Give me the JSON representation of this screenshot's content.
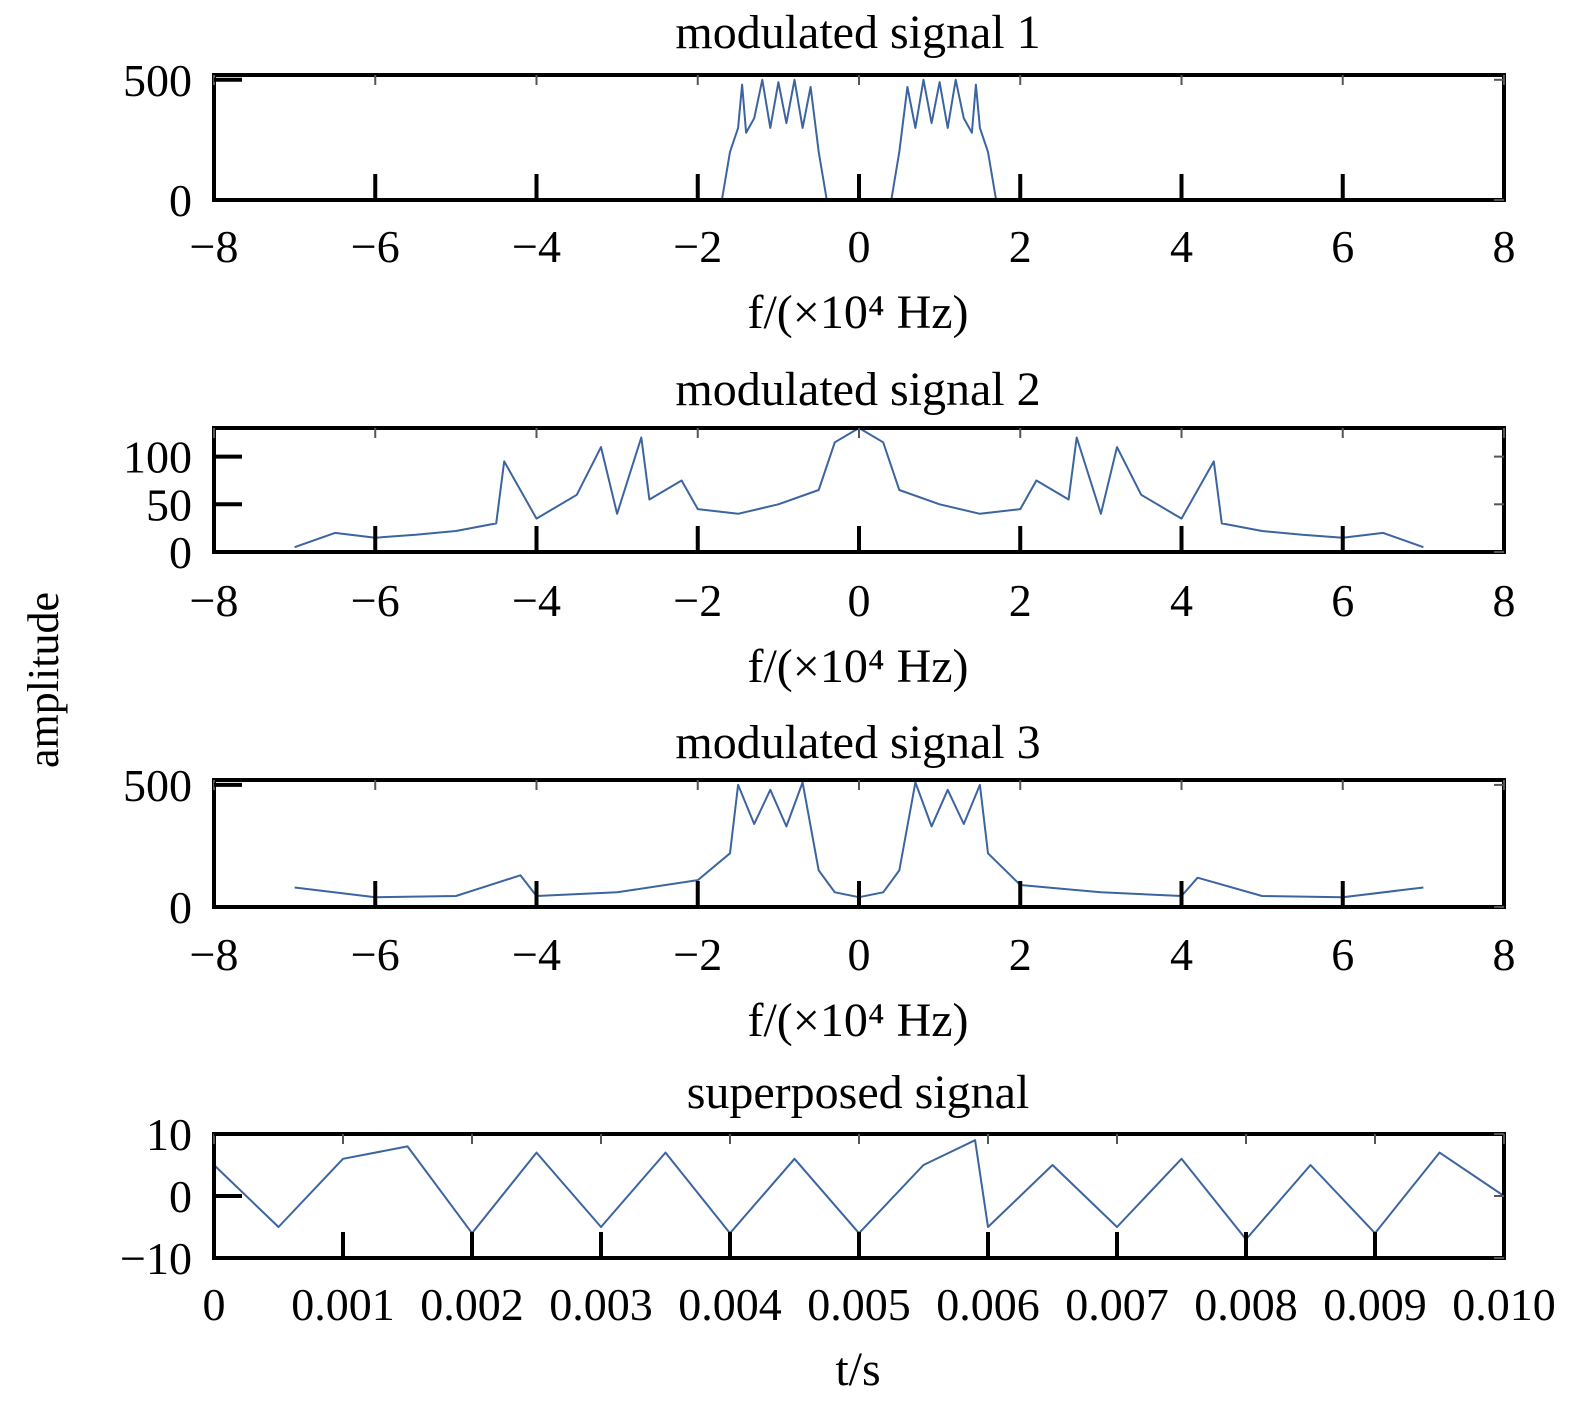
{
  "figure": {
    "ylabel": "amplitude",
    "line_color": "#3b64a0"
  },
  "chart_data": [
    {
      "type": "line",
      "title": "modulated signal 1",
      "xlabel": "f/(×10⁴ Hz)",
      "ylabel": "amplitude",
      "xlim": [
        -8,
        8
      ],
      "ylim": [
        0,
        520
      ],
      "x_ticks": [
        -8,
        -6,
        -4,
        -2,
        0,
        2,
        4,
        6,
        8
      ],
      "x_tick_labels": [
        "−8",
        "−6",
        "−4",
        "−2",
        "0",
        "2",
        "4",
        "6",
        "8"
      ],
      "y_ticks": [
        0,
        500
      ],
      "y_tick_labels": [
        "0",
        "500"
      ],
      "grid": false,
      "series": [
        {
          "x": [
            -1.7,
            -1.6,
            -1.5,
            -1.45,
            -1.4,
            -1.3,
            -1.2,
            -1.1,
            -1.0,
            -0.9,
            -0.8,
            -0.7,
            -0.6,
            -0.5,
            -0.4,
            0.4,
            0.5,
            0.6,
            0.7,
            0.8,
            0.9,
            1.0,
            1.1,
            1.2,
            1.3,
            1.4,
            1.45,
            1.5,
            1.6,
            1.7
          ],
          "y": [
            0,
            200,
            300,
            480,
            280,
            340,
            500,
            300,
            490,
            320,
            500,
            300,
            470,
            200,
            0,
            0,
            200,
            470,
            300,
            500,
            320,
            490,
            300,
            500,
            340,
            280,
            480,
            300,
            200,
            0
          ]
        }
      ]
    },
    {
      "type": "line",
      "title": "modulated signal 2",
      "xlabel": "f/(×10⁴ Hz)",
      "ylabel": "amplitude",
      "xlim": [
        -8,
        8
      ],
      "ylim": [
        0,
        130
      ],
      "x_ticks": [
        -8,
        -6,
        -4,
        -2,
        0,
        2,
        4,
        6,
        8
      ],
      "x_tick_labels": [
        "−8",
        "−6",
        "−4",
        "−2",
        "0",
        "2",
        "4",
        "6",
        "8"
      ],
      "y_ticks": [
        0,
        50,
        100
      ],
      "y_tick_labels": [
        "0",
        "50",
        "100"
      ],
      "grid": false,
      "series": [
        {
          "x": [
            -7.0,
            -6.5,
            -6.0,
            -5.5,
            -5.0,
            -4.5,
            -4.4,
            -4.0,
            -3.5,
            -3.2,
            -3.0,
            -2.7,
            -2.6,
            -2.2,
            -2.0,
            -1.5,
            -1.0,
            -0.5,
            -0.3,
            0.0,
            0.3,
            0.5,
            1.0,
            1.5,
            2.0,
            2.2,
            2.6,
            2.7,
            3.0,
            3.2,
            3.5,
            4.0,
            4.4,
            4.5,
            5.0,
            5.5,
            6.0,
            6.5,
            7.0
          ],
          "y": [
            5,
            20,
            15,
            18,
            22,
            30,
            95,
            35,
            60,
            110,
            40,
            120,
            55,
            75,
            45,
            40,
            50,
            65,
            115,
            130,
            115,
            65,
            50,
            40,
            45,
            75,
            55,
            120,
            40,
            110,
            60,
            35,
            95,
            30,
            22,
            18,
            15,
            20,
            5
          ]
        }
      ]
    },
    {
      "type": "line",
      "title": "modulated signal 3",
      "xlabel": "f/(×10⁴ Hz)",
      "ylabel": "amplitude",
      "xlim": [
        -8,
        8
      ],
      "ylim": [
        0,
        520
      ],
      "x_ticks": [
        -8,
        -6,
        -4,
        -2,
        0,
        2,
        4,
        6,
        8
      ],
      "x_tick_labels": [
        "−8",
        "−6",
        "−4",
        "−2",
        "0",
        "2",
        "4",
        "6",
        "8"
      ],
      "y_ticks": [
        0,
        500
      ],
      "y_tick_labels": [
        "0",
        "500"
      ],
      "grid": false,
      "series": [
        {
          "x": [
            -7.0,
            -6.0,
            -5.0,
            -4.2,
            -4.0,
            -3.0,
            -2.0,
            -1.6,
            -1.5,
            -1.3,
            -1.1,
            -0.9,
            -0.7,
            -0.5,
            -0.3,
            0.0,
            0.3,
            0.5,
            0.7,
            0.9,
            1.1,
            1.3,
            1.5,
            1.6,
            2.0,
            3.0,
            4.0,
            4.2,
            5.0,
            6.0,
            7.0
          ],
          "y": [
            80,
            40,
            45,
            130,
            45,
            60,
            110,
            220,
            500,
            340,
            480,
            330,
            510,
            150,
            60,
            40,
            60,
            150,
            510,
            330,
            480,
            340,
            500,
            220,
            90,
            60,
            45,
            120,
            45,
            40,
            80
          ]
        }
      ]
    },
    {
      "type": "line",
      "title": "superposed signal",
      "xlabel": "t/s",
      "ylabel": "amplitude",
      "xlim": [
        0,
        0.01
      ],
      "ylim": [
        -10,
        10
      ],
      "x_ticks": [
        0,
        0.001,
        0.002,
        0.003,
        0.004,
        0.005,
        0.006,
        0.007,
        0.008,
        0.009,
        0.01
      ],
      "x_tick_labels": [
        "0",
        "0.001",
        "0.002",
        "0.003",
        "0.004",
        "0.005",
        "0.006",
        "0.007",
        "0.008",
        "0.009",
        "0.010"
      ],
      "y_ticks": [
        -10,
        0,
        10
      ],
      "y_tick_labels": [
        "−10",
        "0",
        "10"
      ],
      "grid": false,
      "series": [
        {
          "x": [
            0,
            0.0005,
            0.001,
            0.0015,
            0.002,
            0.0025,
            0.003,
            0.0035,
            0.004,
            0.0045,
            0.005,
            0.0055,
            0.0059,
            0.006,
            0.0065,
            0.007,
            0.0075,
            0.008,
            0.0085,
            0.009,
            0.0095,
            0.01
          ],
          "y": [
            5,
            -5,
            6,
            8,
            -6,
            7,
            -5,
            7,
            -6,
            6,
            -6,
            5,
            9,
            -5,
            5,
            -5,
            6,
            -7,
            5,
            -6,
            7,
            0
          ]
        }
      ]
    }
  ]
}
